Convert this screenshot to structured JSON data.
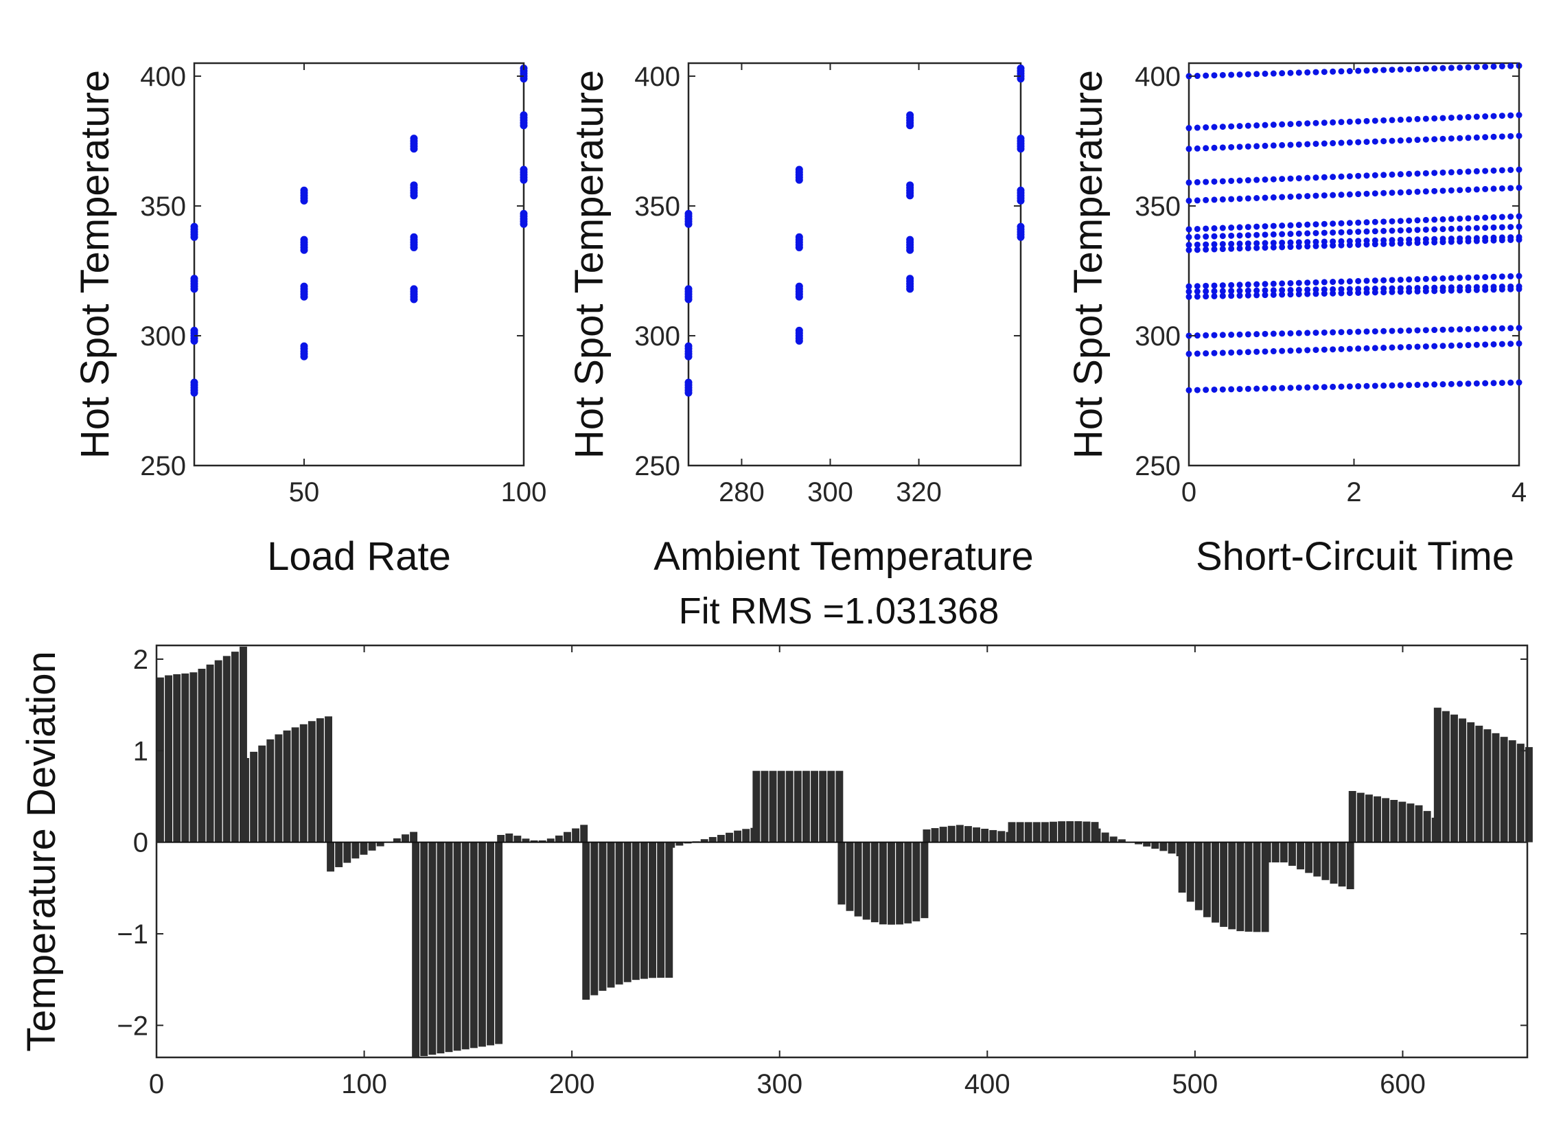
{
  "colors": {
    "scatter": "#0a14e6",
    "bars": "#2e2e2e",
    "axis": "#262626"
  },
  "chart_data": [
    {
      "type": "scatter",
      "xlabel": "Load Rate",
      "ylabel": "Hot Spot Temperature",
      "xlim": [
        25,
        100
      ],
      "ylim": [
        250,
        405
      ],
      "xticks": [
        50,
        100
      ],
      "yticks": [
        250,
        300,
        350,
        400
      ],
      "x": [
        25,
        25,
        25,
        25,
        25,
        25,
        25,
        25,
        25,
        25,
        25,
        25,
        25,
        25,
        25,
        25,
        25,
        25,
        25,
        25,
        50,
        50,
        50,
        50,
        50,
        50,
        50,
        50,
        50,
        50,
        50,
        50,
        50,
        50,
        50,
        50,
        50,
        50,
        50,
        50,
        75,
        75,
        75,
        75,
        75,
        75,
        75,
        75,
        75,
        75,
        75,
        75,
        75,
        75,
        75,
        75,
        75,
        75,
        75,
        75,
        100,
        100,
        100,
        100,
        100,
        100,
        100,
        100,
        100,
        100,
        100,
        100,
        100,
        100,
        100,
        100,
        100,
        100,
        100,
        100
      ],
      "y": [
        278,
        279,
        280,
        281,
        282,
        298,
        299,
        300,
        301,
        302,
        318,
        319,
        320,
        321,
        322,
        338,
        339,
        340,
        341,
        342,
        292,
        293,
        294,
        295,
        296,
        315,
        316,
        317,
        318,
        319,
        333,
        334,
        335,
        336,
        337,
        352,
        353,
        354,
        355,
        356,
        314,
        315,
        316,
        317,
        318,
        334,
        335,
        336,
        337,
        338,
        354,
        355,
        356,
        357,
        358,
        372,
        373,
        374,
        375,
        376,
        343,
        344,
        345,
        346,
        347,
        360,
        361,
        362,
        363,
        364,
        381,
        382,
        383,
        384,
        385,
        399,
        400,
        401,
        402,
        403
      ]
    },
    {
      "type": "scatter",
      "xlabel": "Ambient Temperature",
      "ylabel": "Hot Spot Temperature",
      "xlim": [
        268,
        343
      ],
      "ylim": [
        250,
        405
      ],
      "xticks": [
        280,
        300,
        320
      ],
      "yticks": [
        250,
        300,
        350,
        400
      ],
      "x": [
        268,
        268,
        268,
        268,
        268,
        268,
        268,
        268,
        268,
        268,
        268,
        268,
        268,
        268,
        268,
        268,
        268,
        268,
        268,
        268,
        293,
        293,
        293,
        293,
        293,
        293,
        293,
        293,
        293,
        293,
        293,
        293,
        293,
        293,
        293,
        293,
        293,
        293,
        293,
        293,
        318,
        318,
        318,
        318,
        318,
        318,
        318,
        318,
        318,
        318,
        318,
        318,
        318,
        318,
        318,
        318,
        318,
        318,
        318,
        318,
        343,
        343,
        343,
        343,
        343,
        343,
        343,
        343,
        343,
        343,
        343,
        343,
        343,
        343,
        343,
        343,
        343,
        343,
        343,
        343
      ],
      "y": [
        278,
        279,
        280,
        281,
        282,
        292,
        293,
        294,
        295,
        296,
        314,
        315,
        316,
        317,
        318,
        343,
        344,
        345,
        346,
        347,
        298,
        299,
        300,
        301,
        302,
        315,
        316,
        317,
        318,
        319,
        334,
        335,
        336,
        337,
        338,
        360,
        361,
        362,
        363,
        364,
        318,
        319,
        320,
        321,
        322,
        333,
        334,
        335,
        336,
        337,
        354,
        355,
        356,
        357,
        358,
        381,
        382,
        383,
        384,
        385,
        338,
        339,
        340,
        341,
        342,
        352,
        353,
        354,
        355,
        356,
        372,
        373,
        374,
        375,
        376,
        399,
        400,
        401,
        402,
        403
      ]
    },
    {
      "type": "scatter",
      "xlabel": "Short-Circuit Time",
      "ylabel": "Hot Spot Temperature",
      "xlim": [
        0,
        4
      ],
      "ylim": [
        250,
        405
      ],
      "xticks": [
        0,
        2,
        4
      ],
      "yticks": [
        250,
        300,
        350,
        400
      ],
      "x_range": [
        0,
        4
      ],
      "points_per_line": 40,
      "lines_start_end": [
        [
          279,
          282
        ],
        [
          293,
          297
        ],
        [
          300,
          303
        ],
        [
          315,
          318
        ],
        [
          317,
          319
        ],
        [
          319,
          323
        ],
        [
          333,
          337
        ],
        [
          335,
          338
        ],
        [
          338,
          342
        ],
        [
          341,
          346
        ],
        [
          352,
          357
        ],
        [
          359,
          364
        ],
        [
          372,
          377
        ],
        [
          380,
          385
        ],
        [
          400,
          404
        ]
      ]
    },
    {
      "type": "bar",
      "title": "Fit RMS =1.031368",
      "xlabel": "",
      "ylabel": "Temperature Deviation",
      "xlim": [
        0,
        660
      ],
      "ylim": [
        -2.35,
        2.15
      ],
      "xticks": [
        0,
        100,
        200,
        300,
        400,
        500,
        600
      ],
      "yticks": [
        -2,
        -1,
        0,
        1,
        2
      ],
      "ytick_labels": [
        "−2",
        "−1",
        "0",
        "1",
        "2"
      ],
      "bar_step": 4,
      "segments": [
        {
          "x_start": 0,
          "x_end": 41,
          "values": [
            1.8,
            1.83,
            1.84,
            1.85,
            1.9,
            1.96,
            2.02,
            2.08,
            2.15
          ]
        },
        {
          "x_start": 41,
          "x_end": 82,
          "values": [
            0.92,
            1.02,
            1.12,
            1.2,
            1.25,
            1.3,
            1.35,
            1.38
          ]
        },
        {
          "x_start": 82,
          "x_end": 123,
          "values": [
            -0.32,
            -0.25,
            -0.18,
            -0.12,
            -0.05,
            0.01,
            0.08,
            0.12
          ]
        },
        {
          "x_start": 123,
          "x_end": 164,
          "values": [
            -2.35,
            -2.3,
            -2.25,
            -2.2
          ]
        },
        {
          "x_start": 164,
          "x_end": 205,
          "values": [
            0.08,
            0.1,
            0.05,
            0.02,
            0.02,
            0.05,
            0.1,
            0.15,
            0.2
          ]
        },
        {
          "x_start": 205,
          "x_end": 246,
          "values": [
            -1.72,
            -1.62,
            -1.55,
            -1.5,
            -1.48,
            -1.48
          ]
        },
        {
          "x_start": 246,
          "x_end": 287,
          "values": [
            -0.06,
            -0.02,
            0.02,
            0.06,
            0.1,
            0.14,
            0.16
          ]
        },
        {
          "x_start": 287,
          "x_end": 328,
          "values": [
            0.78,
            0.78,
            0.78,
            0.78,
            0.78
          ]
        },
        {
          "x_start": 328,
          "x_end": 369,
          "values": [
            -0.68,
            -0.8,
            -0.86,
            -0.9,
            -0.9,
            -0.88,
            -0.82
          ]
        },
        {
          "x_start": 369,
          "x_end": 410,
          "values": [
            0.14,
            0.17,
            0.19,
            0.16,
            0.13,
            0.11
          ]
        },
        {
          "x_start": 410,
          "x_end": 451,
          "values": [
            0.22,
            0.22,
            0.22,
            0.23,
            0.23,
            0.22
          ]
        },
        {
          "x_start": 451,
          "x_end": 492,
          "values": [
            0.15,
            0.06,
            0.0,
            -0.05,
            -0.1,
            -0.16
          ]
        },
        {
          "x_start": 492,
          "x_end": 533,
          "values": [
            -0.55,
            -0.72,
            -0.85,
            -0.93,
            -0.97,
            -0.98,
            -0.98
          ]
        },
        {
          "x_start": 533,
          "x_end": 574,
          "values": [
            -0.22,
            -0.22,
            -0.3,
            -0.38,
            -0.46,
            -0.52
          ]
        },
        {
          "x_start": 574,
          "x_end": 615,
          "values": [
            0.56,
            0.52,
            0.48,
            0.44,
            0.4,
            0.25
          ]
        },
        {
          "x_start": 615,
          "x_end": 660,
          "values": [
            1.47,
            1.4,
            1.32,
            1.25,
            1.17,
            1.1,
            1.03
          ]
        }
      ]
    }
  ]
}
